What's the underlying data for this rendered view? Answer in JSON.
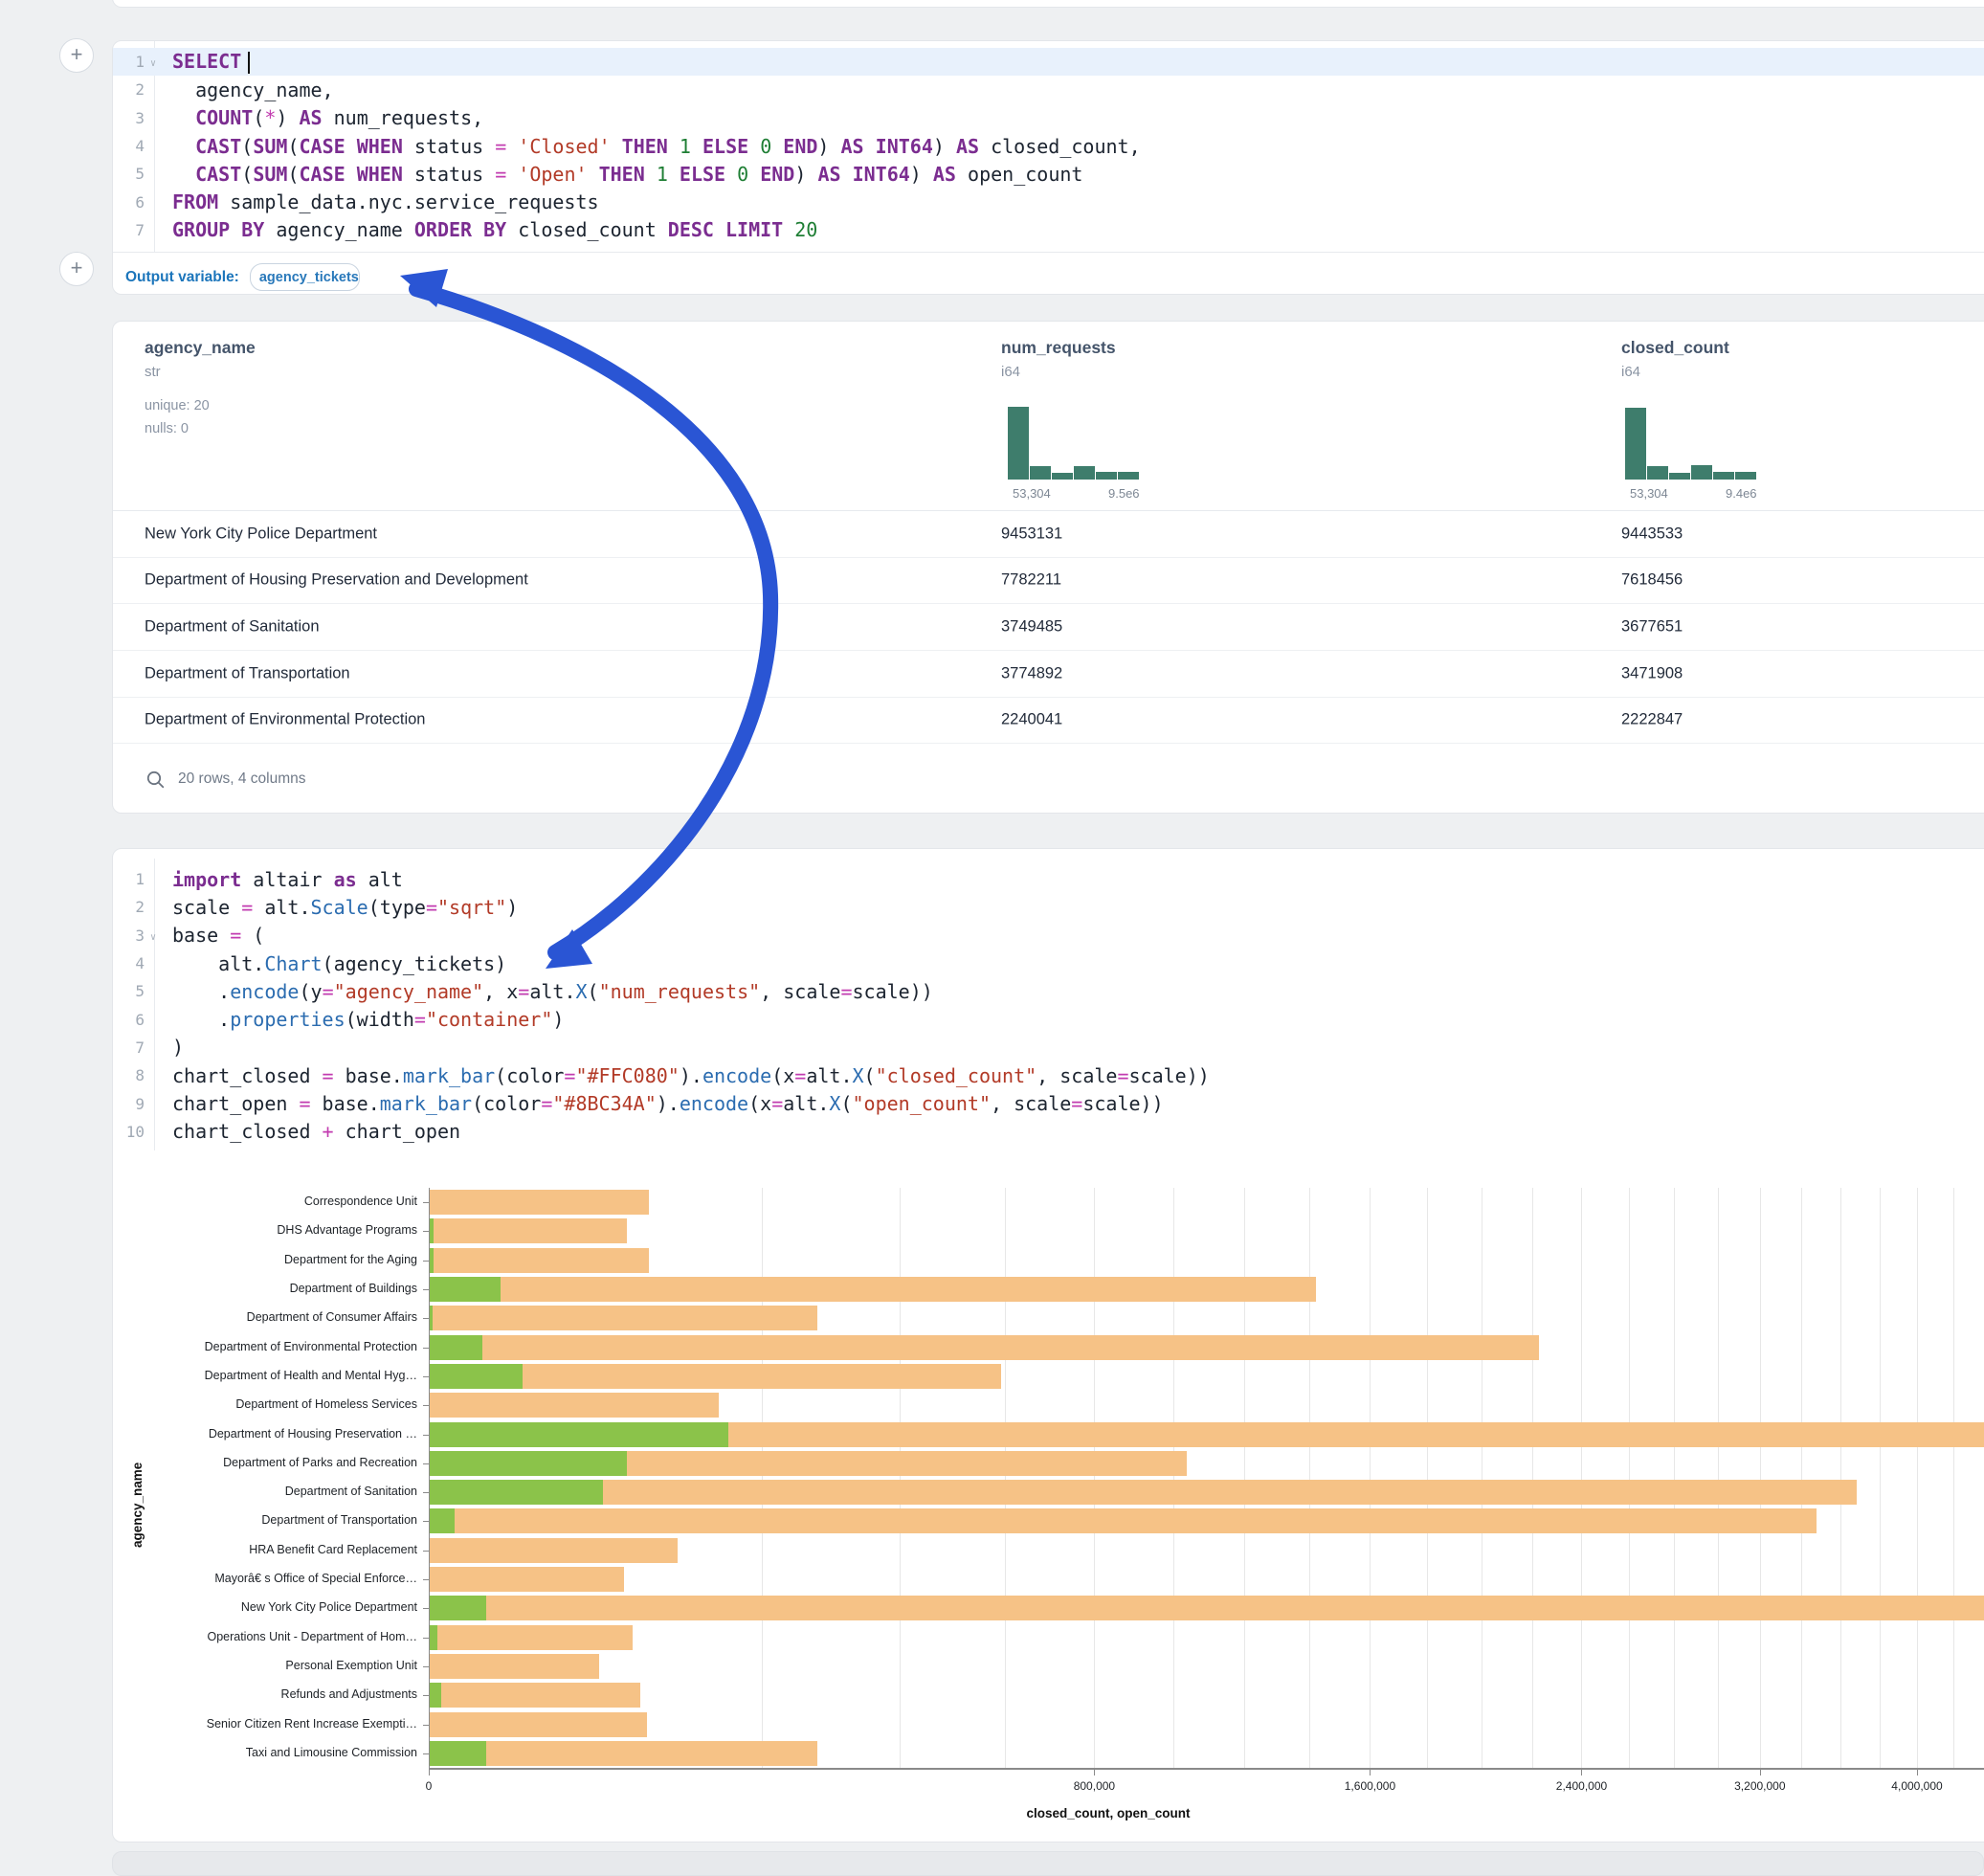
{
  "colors": {
    "closed_bar": "#F6C286",
    "open_bar": "#8BC34A",
    "hist": "#3e7d6c",
    "arrow": "#2a55d4",
    "keyword": "#7b2d90",
    "string": "#b23a27",
    "accent_blue": "#1b75bb"
  },
  "plus_buttons": {
    "top_label": "+",
    "mid_label": "+"
  },
  "sql_cell": {
    "line_numbers": [
      "1",
      "2",
      "3",
      "4",
      "5",
      "6",
      "7"
    ],
    "fold_line_index": 0,
    "lines": [
      [
        {
          "c": "k",
          "t": "SELECT"
        },
        {
          "c": "cursor",
          "t": ""
        }
      ],
      [
        {
          "c": "p",
          "t": "  agency_name,"
        }
      ],
      [
        {
          "c": "p",
          "t": "  "
        },
        {
          "c": "k",
          "t": "COUNT"
        },
        {
          "c": "p",
          "t": "("
        },
        {
          "c": "o",
          "t": "*"
        },
        {
          "c": "p",
          "t": ") "
        },
        {
          "c": "k",
          "t": "AS"
        },
        {
          "c": "p",
          "t": " num_requests,"
        }
      ],
      [
        {
          "c": "p",
          "t": "  "
        },
        {
          "c": "k",
          "t": "CAST"
        },
        {
          "c": "p",
          "t": "("
        },
        {
          "c": "k",
          "t": "SUM"
        },
        {
          "c": "p",
          "t": "("
        },
        {
          "c": "k",
          "t": "CASE"
        },
        {
          "c": "p",
          "t": " "
        },
        {
          "c": "k",
          "t": "WHEN"
        },
        {
          "c": "p",
          "t": " status "
        },
        {
          "c": "o",
          "t": "="
        },
        {
          "c": "p",
          "t": " "
        },
        {
          "c": "s",
          "t": "'Closed'"
        },
        {
          "c": "p",
          "t": " "
        },
        {
          "c": "k",
          "t": "THEN"
        },
        {
          "c": "p",
          "t": " "
        },
        {
          "c": "n",
          "t": "1"
        },
        {
          "c": "p",
          "t": " "
        },
        {
          "c": "k",
          "t": "ELSE"
        },
        {
          "c": "p",
          "t": " "
        },
        {
          "c": "n",
          "t": "0"
        },
        {
          "c": "p",
          "t": " "
        },
        {
          "c": "k",
          "t": "END"
        },
        {
          "c": "p",
          "t": ") "
        },
        {
          "c": "k",
          "t": "AS"
        },
        {
          "c": "p",
          "t": " "
        },
        {
          "c": "k",
          "t": "INT64"
        },
        {
          "c": "p",
          "t": ") "
        },
        {
          "c": "k",
          "t": "AS"
        },
        {
          "c": "p",
          "t": " closed_count,"
        }
      ],
      [
        {
          "c": "p",
          "t": "  "
        },
        {
          "c": "k",
          "t": "CAST"
        },
        {
          "c": "p",
          "t": "("
        },
        {
          "c": "k",
          "t": "SUM"
        },
        {
          "c": "p",
          "t": "("
        },
        {
          "c": "k",
          "t": "CASE"
        },
        {
          "c": "p",
          "t": " "
        },
        {
          "c": "k",
          "t": "WHEN"
        },
        {
          "c": "p",
          "t": " status "
        },
        {
          "c": "o",
          "t": "="
        },
        {
          "c": "p",
          "t": " "
        },
        {
          "c": "s",
          "t": "'Open'"
        },
        {
          "c": "p",
          "t": " "
        },
        {
          "c": "k",
          "t": "THEN"
        },
        {
          "c": "p",
          "t": " "
        },
        {
          "c": "n",
          "t": "1"
        },
        {
          "c": "p",
          "t": " "
        },
        {
          "c": "k",
          "t": "ELSE"
        },
        {
          "c": "p",
          "t": " "
        },
        {
          "c": "n",
          "t": "0"
        },
        {
          "c": "p",
          "t": " "
        },
        {
          "c": "k",
          "t": "END"
        },
        {
          "c": "p",
          "t": ") "
        },
        {
          "c": "k",
          "t": "AS"
        },
        {
          "c": "p",
          "t": " "
        },
        {
          "c": "k",
          "t": "INT64"
        },
        {
          "c": "p",
          "t": ") "
        },
        {
          "c": "k",
          "t": "AS"
        },
        {
          "c": "p",
          "t": " open_count"
        }
      ],
      [
        {
          "c": "k",
          "t": "FROM"
        },
        {
          "c": "p",
          "t": " sample_data.nyc.service_requests"
        }
      ],
      [
        {
          "c": "k",
          "t": "GROUP BY"
        },
        {
          "c": "p",
          "t": " agency_name "
        },
        {
          "c": "k",
          "t": "ORDER BY"
        },
        {
          "c": "p",
          "t": " closed_count "
        },
        {
          "c": "k",
          "t": "DESC"
        },
        {
          "c": "p",
          "t": " "
        },
        {
          "c": "k",
          "t": "LIMIT"
        },
        {
          "c": "p",
          "t": " "
        },
        {
          "c": "n",
          "t": "20"
        }
      ]
    ],
    "output_label": "Output variable:",
    "output_variable": "agency_tickets"
  },
  "result_table": {
    "columns": [
      {
        "name": "agency_name",
        "type": "str",
        "meta": [
          "unique: 20",
          "nulls: 0"
        ]
      },
      {
        "name": "num_requests",
        "type": "i64",
        "hist": {
          "heights": [
            76,
            14,
            7,
            14,
            8,
            8
          ],
          "min_label": "53,304",
          "max_label": "9.5e6"
        }
      },
      {
        "name": "closed_count",
        "type": "i64",
        "hist": {
          "heights": [
            75,
            14,
            7,
            15,
            8,
            8
          ],
          "min_label": "53,304",
          "max_label": "9.4e6"
        }
      }
    ],
    "rows": [
      {
        "agency_name": "New York City Police Department",
        "num_requests": "9453131",
        "closed_count": "9443533"
      },
      {
        "agency_name": "Department of Housing Preservation and Development",
        "num_requests": "7782211",
        "closed_count": "7618456"
      },
      {
        "agency_name": "Department of Sanitation",
        "num_requests": "3749485",
        "closed_count": "3677651"
      },
      {
        "agency_name": "Department of Transportation",
        "num_requests": "3774892",
        "closed_count": "3471908"
      },
      {
        "agency_name": "Department of Environmental Protection",
        "num_requests": "2240041",
        "closed_count": "2222847"
      }
    ],
    "footer": "20 rows, 4 columns"
  },
  "python_cell": {
    "line_numbers": [
      "1",
      "2",
      "3",
      "4",
      "5",
      "6",
      "7",
      "8",
      "9",
      "10"
    ],
    "fold_line_index": 2,
    "lines": [
      [
        {
          "c": "k",
          "t": "import"
        },
        {
          "c": "p",
          "t": " altair "
        },
        {
          "c": "k",
          "t": "as"
        },
        {
          "c": "p",
          "t": " alt"
        }
      ],
      [
        {
          "c": "p",
          "t": "scale "
        },
        {
          "c": "o",
          "t": "="
        },
        {
          "c": "p",
          "t": " alt."
        },
        {
          "c": "f",
          "t": "Scale"
        },
        {
          "c": "p",
          "t": "(type"
        },
        {
          "c": "o",
          "t": "="
        },
        {
          "c": "s",
          "t": "\"sqrt\""
        },
        {
          "c": "p",
          "t": ")"
        }
      ],
      [
        {
          "c": "p",
          "t": "base "
        },
        {
          "c": "o",
          "t": "="
        },
        {
          "c": "p",
          "t": " ("
        }
      ],
      [
        {
          "c": "p",
          "t": "    alt."
        },
        {
          "c": "f",
          "t": "Chart"
        },
        {
          "c": "p",
          "t": "(agency_tickets)"
        }
      ],
      [
        {
          "c": "p",
          "t": "    ."
        },
        {
          "c": "f",
          "t": "encode"
        },
        {
          "c": "p",
          "t": "(y"
        },
        {
          "c": "o",
          "t": "="
        },
        {
          "c": "s",
          "t": "\"agency_name\""
        },
        {
          "c": "p",
          "t": ", x"
        },
        {
          "c": "o",
          "t": "="
        },
        {
          "c": "p",
          "t": "alt."
        },
        {
          "c": "f",
          "t": "X"
        },
        {
          "c": "p",
          "t": "("
        },
        {
          "c": "s",
          "t": "\"num_requests\""
        },
        {
          "c": "p",
          "t": ", scale"
        },
        {
          "c": "o",
          "t": "="
        },
        {
          "c": "p",
          "t": "scale))"
        }
      ],
      [
        {
          "c": "p",
          "t": "    ."
        },
        {
          "c": "f",
          "t": "properties"
        },
        {
          "c": "p",
          "t": "(width"
        },
        {
          "c": "o",
          "t": "="
        },
        {
          "c": "s",
          "t": "\"container\""
        },
        {
          "c": "p",
          "t": ")"
        }
      ],
      [
        {
          "c": "p",
          "t": ")"
        }
      ],
      [
        {
          "c": "p",
          "t": "chart_closed "
        },
        {
          "c": "o",
          "t": "="
        },
        {
          "c": "p",
          "t": " base."
        },
        {
          "c": "f",
          "t": "mark_bar"
        },
        {
          "c": "p",
          "t": "(color"
        },
        {
          "c": "o",
          "t": "="
        },
        {
          "c": "s",
          "t": "\"#FFC080\""
        },
        {
          "c": "p",
          "t": ")."
        },
        {
          "c": "f",
          "t": "encode"
        },
        {
          "c": "p",
          "t": "(x"
        },
        {
          "c": "o",
          "t": "="
        },
        {
          "c": "p",
          "t": "alt."
        },
        {
          "c": "f",
          "t": "X"
        },
        {
          "c": "p",
          "t": "("
        },
        {
          "c": "s",
          "t": "\"closed_count\""
        },
        {
          "c": "p",
          "t": ", scale"
        },
        {
          "c": "o",
          "t": "="
        },
        {
          "c": "p",
          "t": "scale))"
        }
      ],
      [
        {
          "c": "p",
          "t": "chart_open "
        },
        {
          "c": "o",
          "t": "="
        },
        {
          "c": "p",
          "t": " base."
        },
        {
          "c": "f",
          "t": "mark_bar"
        },
        {
          "c": "p",
          "t": "(color"
        },
        {
          "c": "o",
          "t": "="
        },
        {
          "c": "s",
          "t": "\"#8BC34A\""
        },
        {
          "c": "p",
          "t": ")."
        },
        {
          "c": "f",
          "t": "encode"
        },
        {
          "c": "p",
          "t": "(x"
        },
        {
          "c": "o",
          "t": "="
        },
        {
          "c": "p",
          "t": "alt."
        },
        {
          "c": "f",
          "t": "X"
        },
        {
          "c": "p",
          "t": "("
        },
        {
          "c": "s",
          "t": "\"open_count\""
        },
        {
          "c": "p",
          "t": ", scale"
        },
        {
          "c": "o",
          "t": "="
        },
        {
          "c": "p",
          "t": "scale))"
        }
      ],
      [
        {
          "c": "p",
          "t": "chart_closed "
        },
        {
          "c": "o",
          "t": "+"
        },
        {
          "c": "p",
          "t": " chart_open"
        }
      ]
    ]
  },
  "chart_data": {
    "type": "bar",
    "orientation": "horizontal",
    "x_scale": "sqrt",
    "xlabel": "closed_count, open_count",
    "ylabel": "agency_name",
    "grid_step": 200000,
    "grid_max": 4400000,
    "x_ticks": [
      {
        "value": 0,
        "label": "0"
      },
      {
        "value": 800000,
        "label": "800,000"
      },
      {
        "value": 1600000,
        "label": "1,600,000"
      },
      {
        "value": 2400000,
        "label": "2,400,000"
      },
      {
        "value": 3200000,
        "label": "3,200,000"
      },
      {
        "value": 4000000,
        "label": "4,000,000"
      }
    ],
    "categories": [
      "Correspondence Unit",
      "DHS Advantage Programs",
      "Department for the Aging",
      "Department of Buildings",
      "Department of Consumer Affairs",
      "Department of Environmental Protection",
      "Department of Health and Mental Hyg…",
      "Department of Homeless Services",
      "Department of Housing Preservation …",
      "Department of Parks and Recreation",
      "Department of Sanitation",
      "Department of Transportation",
      "HRA Benefit Card Replacement",
      "Mayorâ€ s Office of Special Enforce…",
      "New York City Police Department",
      "Operations Unit - Department of Hom…",
      "Personal Exemption Unit",
      "Refunds and Adjustments",
      "Senior Citizen Rent Increase Exempti…",
      "Taxi and Limousine Commission"
    ],
    "series": [
      {
        "name": "closed_count",
        "color": "#F6C286",
        "values": [
          87000,
          70000,
          87000,
          1420000,
          272000,
          2222847,
          590000,
          151000,
          7618456,
          1034000,
          3677651,
          3471908,
          111000,
          68000,
          9443533,
          74000,
          52000,
          80000,
          85000,
          272000
        ]
      },
      {
        "name": "open_count",
        "color": "#8BC34A",
        "values": [
          0,
          30,
          25,
          9000,
          15,
          5000,
          15500,
          0,
          161000,
          70000,
          54000,
          1100,
          0,
          0,
          5700,
          100,
          0,
          240,
          0,
          5700
        ]
      }
    ]
  }
}
